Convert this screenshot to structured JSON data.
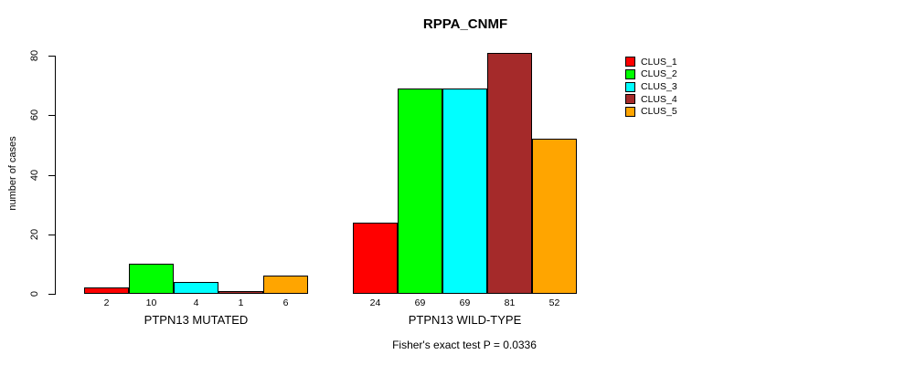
{
  "chart_data": {
    "type": "bar",
    "title": "RPPA_CNMF",
    "ylabel": "number of cases",
    "xlabel": "",
    "ylim": [
      0,
      80
    ],
    "yticks": [
      0,
      20,
      40,
      60,
      80
    ],
    "grid": false,
    "legend_position": "top-right",
    "categories": [
      "PTPN13 MUTATED",
      "PTPN13 WILD-TYPE"
    ],
    "series": [
      {
        "name": "CLUS_1",
        "color": "#FF0000",
        "values": [
          2,
          24
        ]
      },
      {
        "name": "CLUS_2",
        "color": "#00FF00",
        "values": [
          10,
          69
        ]
      },
      {
        "name": "CLUS_3",
        "color": "#00FFFF",
        "values": [
          4,
          69
        ]
      },
      {
        "name": "CLUS_4",
        "color": "#A52A2A",
        "values": [
          1,
          81
        ]
      },
      {
        "name": "CLUS_5",
        "color": "#FFA500",
        "values": [
          6,
          52
        ]
      }
    ],
    "bar_value_labels": [
      [
        "2",
        "10",
        "4",
        "1",
        "6"
      ],
      [
        "24",
        "69",
        "69",
        "81",
        "52"
      ]
    ],
    "annotation": "Fisher's exact test P = 0.0336"
  }
}
